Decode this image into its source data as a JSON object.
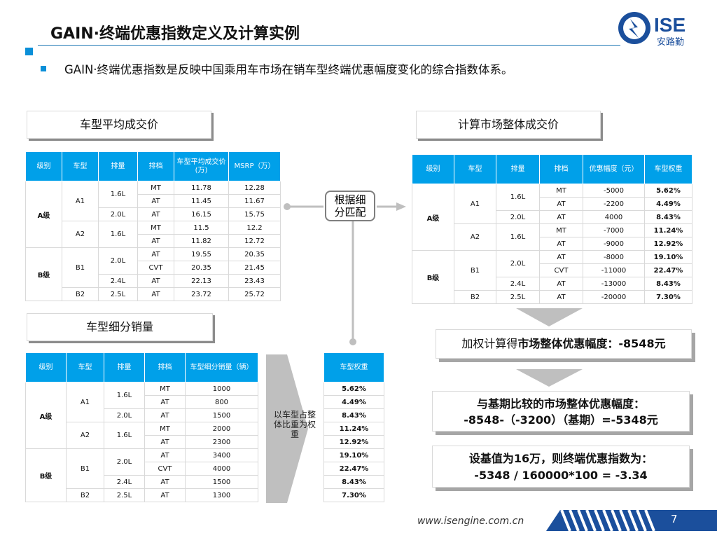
{
  "header": {
    "title": "GAIN·终端优惠指数定义及计算实例",
    "subtitle": "GAIN·终端优惠指数是反映中国乘用车市场在销车型终端优惠幅度变化的综合指数体系。",
    "logo_text": "ISE",
    "logo_sub": "安路勤",
    "colors": {
      "accent": "#00a0e9",
      "brand": "#1b4f9c",
      "shadow": "#8c8c8c"
    }
  },
  "sections": {
    "avg_price_title": "车型平均成交价",
    "market_price_title": "计算市场整体成交价",
    "sales_title": "车型细分销量"
  },
  "center_label": "根据细分匹配",
  "weight_label": "以车型占整体比重为权重",
  "table1": {
    "headers": [
      "级别",
      "车型",
      "排量",
      "排档",
      "车型平均成交价(万)",
      "MSRP（万）"
    ],
    "rows": [
      {
        "cls": "A级",
        "model": "A1",
        "disp": "1.6L",
        "gear": "MT",
        "v1": "11.78",
        "v2": "12.28"
      },
      {
        "cls": "",
        "model": "",
        "disp": "",
        "gear": "AT",
        "v1": "11.45",
        "v2": "11.67"
      },
      {
        "cls": "",
        "model": "",
        "disp": "2.0L",
        "gear": "AT",
        "v1": "16.15",
        "v2": "15.75"
      },
      {
        "cls": "",
        "model": "A2",
        "disp": "1.6L",
        "gear": "MT",
        "v1": "11.5",
        "v2": "12.2"
      },
      {
        "cls": "",
        "model": "",
        "disp": "",
        "gear": "AT",
        "v1": "11.82",
        "v2": "12.72"
      },
      {
        "cls": "B级",
        "model": "B1",
        "disp": "2.0L",
        "gear": "AT",
        "v1": "19.55",
        "v2": "20.35"
      },
      {
        "cls": "",
        "model": "",
        "disp": "",
        "gear": "CVT",
        "v1": "20.35",
        "v2": "21.45"
      },
      {
        "cls": "",
        "model": "",
        "disp": "2.4L",
        "gear": "AT",
        "v1": "22.13",
        "v2": "23.43"
      },
      {
        "cls": "",
        "model": "B2",
        "disp": "2.5L",
        "gear": "AT",
        "v1": "23.72",
        "v2": "25.72"
      }
    ]
  },
  "table2": {
    "headers": [
      "级别",
      "车型",
      "排量",
      "排档",
      "优惠幅度（元）",
      "车型权重"
    ],
    "rows": [
      {
        "cls": "A级",
        "model": "A1",
        "disp": "1.6L",
        "gear": "MT",
        "v1": "-5000",
        "v2": "5.62%"
      },
      {
        "cls": "",
        "model": "",
        "disp": "",
        "gear": "AT",
        "v1": "-2200",
        "v2": "4.49%"
      },
      {
        "cls": "",
        "model": "",
        "disp": "2.0L",
        "gear": "AT",
        "v1": "4000",
        "v2": "8.43%"
      },
      {
        "cls": "",
        "model": "A2",
        "disp": "1.6L",
        "gear": "MT",
        "v1": "-7000",
        "v2": "11.24%"
      },
      {
        "cls": "",
        "model": "",
        "disp": "",
        "gear": "AT",
        "v1": "-9000",
        "v2": "12.92%"
      },
      {
        "cls": "B级",
        "model": "B1",
        "disp": "2.0L",
        "gear": "AT",
        "v1": "-8000",
        "v2": "19.10%"
      },
      {
        "cls": "",
        "model": "",
        "disp": "",
        "gear": "CVT",
        "v1": "-11000",
        "v2": "22.47%"
      },
      {
        "cls": "",
        "model": "",
        "disp": "2.4L",
        "gear": "AT",
        "v1": "-13000",
        "v2": "8.43%"
      },
      {
        "cls": "",
        "model": "B2",
        "disp": "2.5L",
        "gear": "AT",
        "v1": "-20000",
        "v2": "7.30%"
      }
    ]
  },
  "table3": {
    "headers": [
      "级别",
      "车型",
      "排量",
      "排档",
      "车型细分销量（辆）"
    ],
    "rows": [
      {
        "cls": "A级",
        "model": "A1",
        "disp": "1.6L",
        "gear": "MT",
        "v1": "1000"
      },
      {
        "cls": "",
        "model": "",
        "disp": "",
        "gear": "AT",
        "v1": "800"
      },
      {
        "cls": "",
        "model": "",
        "disp": "2.0L",
        "gear": "AT",
        "v1": "1500"
      },
      {
        "cls": "",
        "model": "A2",
        "disp": "1.6L",
        "gear": "MT",
        "v1": "2000"
      },
      {
        "cls": "",
        "model": "",
        "disp": "",
        "gear": "AT",
        "v1": "2300"
      },
      {
        "cls": "B级",
        "model": "B1",
        "disp": "2.0L",
        "gear": "AT",
        "v1": "3400"
      },
      {
        "cls": "",
        "model": "",
        "disp": "",
        "gear": "CVT",
        "v1": "4000"
      },
      {
        "cls": "",
        "model": "",
        "disp": "2.4L",
        "gear": "AT",
        "v1": "1500"
      },
      {
        "cls": "",
        "model": "B2",
        "disp": "2.5L",
        "gear": "AT",
        "v1": "1300"
      }
    ]
  },
  "table4": {
    "header": "车型权重",
    "rows": [
      "5.62%",
      "4.49%",
      "8.43%",
      "11.24%",
      "12.92%",
      "19.10%",
      "22.47%",
      "8.43%",
      "7.30%"
    ]
  },
  "results": {
    "r1_prefix": "加权计算得",
    "r1_bold": "市场整体优惠幅度：-8548元",
    "r2_line1": "与基期比较的市场整体优惠幅度：",
    "r2_line2": "-8548-（-3200）（基期）=-5348元",
    "r3_line1": "设基值为16万，则终端优惠指数为：",
    "r3_line2": "-5348 / 160000*100 = -3.34"
  },
  "footer": {
    "url": "www.isengine.com.cn",
    "page": "7"
  }
}
